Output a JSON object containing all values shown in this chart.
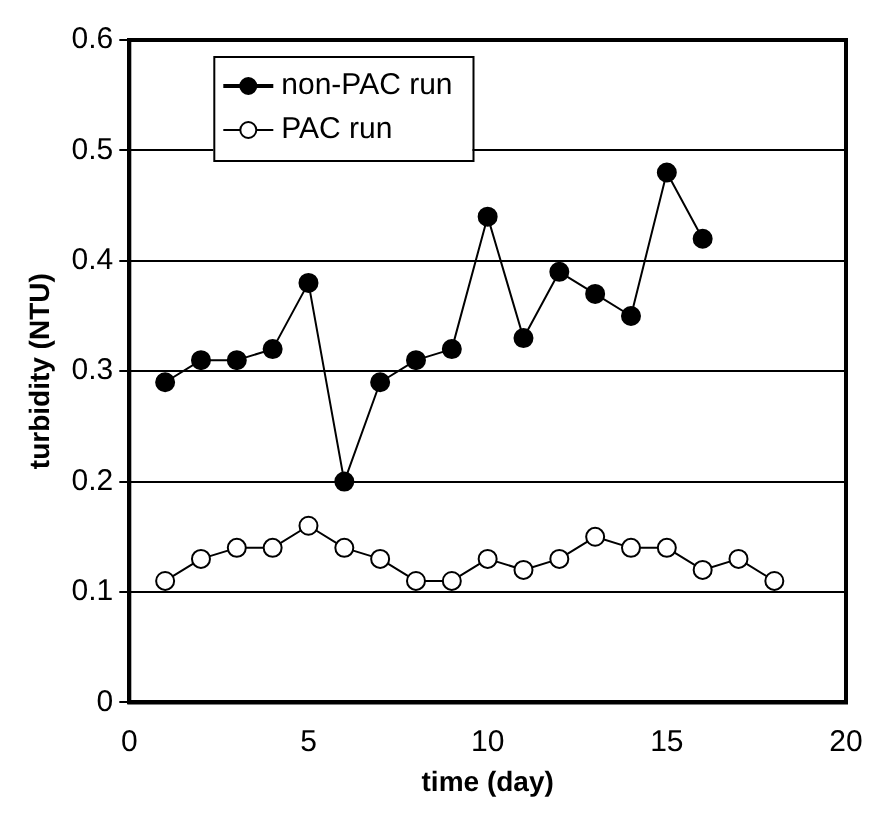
{
  "chart_data": {
    "type": "line",
    "xlabel": "time (day)",
    "ylabel": "turbidity (NTU)",
    "xlim": [
      0,
      20
    ],
    "xticks": [
      0,
      5,
      10,
      15,
      20
    ],
    "ylim": [
      0,
      0.6
    ],
    "yticks": [
      0,
      0.1,
      0.2,
      0.3,
      0.4,
      0.5,
      0.6
    ],
    "grid": "y",
    "legend": "top left",
    "series": [
      {
        "name": "non-PAC run",
        "color": "#000000",
        "marker": "circle",
        "x": [
          1,
          2,
          3,
          4,
          5,
          6,
          7,
          8,
          9,
          10,
          11,
          12,
          13,
          14,
          15,
          16
        ],
        "values": [
          0.29,
          0.31,
          0.31,
          0.32,
          0.38,
          0.2,
          0.29,
          0.31,
          0.32,
          0.44,
          0.33,
          0.39,
          0.37,
          0.35,
          0.48,
          0.42
        ]
      },
      {
        "name": "PAC run",
        "color": "#000000",
        "marker": "circle",
        "x": [
          1,
          2,
          3,
          4,
          5,
          6,
          7,
          8,
          9,
          10,
          11,
          12,
          13,
          14,
          15,
          16,
          17,
          18
        ],
        "values": [
          0.11,
          0.13,
          0.14,
          0.14,
          0.16,
          0.14,
          0.13,
          0.11,
          0.11,
          0.13,
          0.12,
          0.13,
          0.15,
          0.14,
          0.14,
          0.12,
          0.13,
          0.11
        ]
      }
    ]
  }
}
